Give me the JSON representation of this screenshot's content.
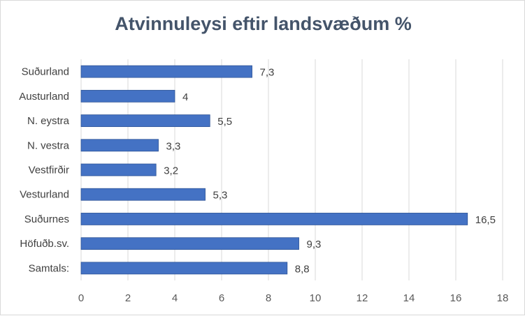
{
  "chart_data": {
    "type": "bar",
    "orientation": "horizontal",
    "title": "Atvinnuleysi eftir landsvæðum %",
    "categories": [
      "Suðurland",
      "Austurland",
      "N. eystra",
      "N. vestra",
      "Vestfirðir",
      "Vesturland",
      "Suðurnes",
      "Höfuðb.sv.",
      "Samtals:"
    ],
    "values": [
      7.3,
      4,
      5.5,
      3.3,
      3.2,
      5.3,
      16.5,
      9.3,
      8.8
    ],
    "data_labels": [
      "7,3",
      "4",
      "5,5",
      "3,3",
      "3,2",
      "5,3",
      "16,5",
      "9,3",
      "8,8"
    ],
    "xlim": [
      0,
      18
    ],
    "x_ticks": [
      "0",
      "2",
      "4",
      "6",
      "8",
      "10",
      "12",
      "14",
      "16",
      "18"
    ],
    "grid": "vertical",
    "legend": "none",
    "colors": {
      "bar": "#4472c4",
      "bar_edge": "#2f5597",
      "title": "#44546a",
      "grid": "#d9d9d9"
    }
  }
}
